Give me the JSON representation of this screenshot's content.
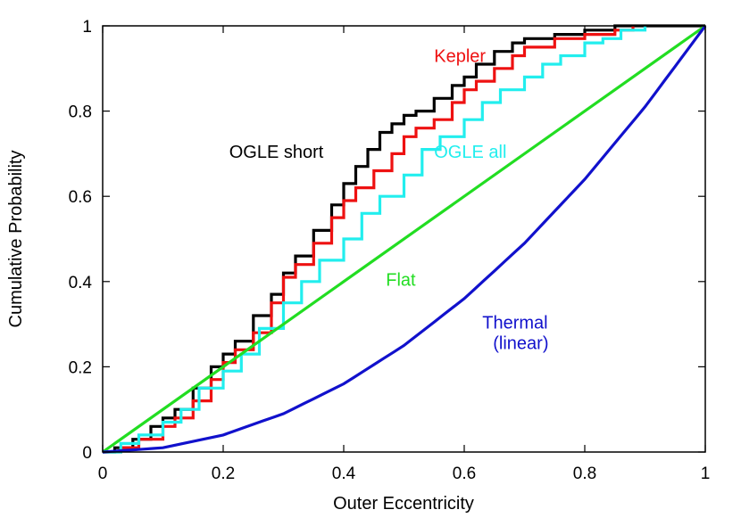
{
  "chart_data": {
    "type": "line",
    "title": "",
    "xlabel": "Outer Eccentricity",
    "ylabel": "Cumulative Probability",
    "xlim": [
      0,
      1
    ],
    "ylim": [
      0,
      1
    ],
    "x_ticks": [
      "0",
      "0.2",
      "0.4",
      "0.6",
      "0.8",
      "1"
    ],
    "y_ticks": [
      "0",
      "0.2",
      "0.4",
      "0.6",
      "0.8",
      "1"
    ],
    "grid": false,
    "series": [
      {
        "name": "OGLE short",
        "color": "#000000",
        "step": true,
        "x": [
          0.0,
          0.02,
          0.05,
          0.08,
          0.1,
          0.12,
          0.15,
          0.18,
          0.2,
          0.22,
          0.25,
          0.28,
          0.3,
          0.32,
          0.35,
          0.38,
          0.4,
          0.42,
          0.44,
          0.46,
          0.48,
          0.5,
          0.52,
          0.55,
          0.58,
          0.6,
          0.62,
          0.65,
          0.68,
          0.7,
          0.75,
          0.8,
          0.85,
          0.9,
          1.0
        ],
        "y": [
          0.0,
          0.01,
          0.03,
          0.06,
          0.08,
          0.1,
          0.15,
          0.2,
          0.23,
          0.26,
          0.32,
          0.37,
          0.42,
          0.46,
          0.52,
          0.58,
          0.63,
          0.67,
          0.71,
          0.75,
          0.77,
          0.79,
          0.8,
          0.83,
          0.86,
          0.88,
          0.91,
          0.94,
          0.96,
          0.97,
          0.98,
          0.99,
          1.0,
          1.0,
          1.0
        ]
      },
      {
        "name": "Kepler",
        "color": "#ee1111",
        "step": true,
        "x": [
          0.0,
          0.03,
          0.06,
          0.1,
          0.12,
          0.15,
          0.18,
          0.2,
          0.22,
          0.25,
          0.28,
          0.3,
          0.32,
          0.35,
          0.38,
          0.4,
          0.42,
          0.45,
          0.48,
          0.5,
          0.52,
          0.55,
          0.58,
          0.6,
          0.62,
          0.65,
          0.68,
          0.7,
          0.75,
          0.8,
          0.85,
          0.88
        ],
        "y": [
          0.0,
          0.01,
          0.03,
          0.06,
          0.08,
          0.12,
          0.17,
          0.21,
          0.24,
          0.28,
          0.35,
          0.41,
          0.44,
          0.49,
          0.55,
          0.59,
          0.62,
          0.66,
          0.7,
          0.74,
          0.76,
          0.78,
          0.82,
          0.85,
          0.87,
          0.9,
          0.93,
          0.95,
          0.97,
          0.98,
          0.99,
          1.0
        ]
      },
      {
        "name": "OGLE all",
        "color": "#22eeee",
        "step": true,
        "x": [
          0.0,
          0.03,
          0.06,
          0.1,
          0.13,
          0.16,
          0.2,
          0.23,
          0.26,
          0.3,
          0.33,
          0.36,
          0.4,
          0.43,
          0.46,
          0.5,
          0.53,
          0.56,
          0.6,
          0.63,
          0.66,
          0.7,
          0.73,
          0.76,
          0.8,
          0.83,
          0.86,
          0.9
        ],
        "y": [
          0.0,
          0.02,
          0.04,
          0.07,
          0.1,
          0.15,
          0.19,
          0.23,
          0.29,
          0.35,
          0.4,
          0.45,
          0.5,
          0.56,
          0.6,
          0.65,
          0.71,
          0.74,
          0.78,
          0.82,
          0.85,
          0.88,
          0.91,
          0.93,
          0.96,
          0.97,
          0.99,
          1.0
        ]
      },
      {
        "name": "Flat",
        "color": "#22dd22",
        "step": false,
        "x": [
          0,
          1
        ],
        "y": [
          0,
          1
        ]
      },
      {
        "name": "Thermal (linear)",
        "color": "#1111cc",
        "step": false,
        "x": [
          0.0,
          0.1,
          0.2,
          0.3,
          0.4,
          0.5,
          0.6,
          0.7,
          0.8,
          0.9,
          1.0
        ],
        "y": [
          0.0,
          0.01,
          0.04,
          0.09,
          0.16,
          0.25,
          0.36,
          0.49,
          0.64,
          0.81,
          1.0
        ]
      }
    ],
    "annotations": [
      {
        "series": "OGLE short",
        "lines": [
          "OGLE short"
        ],
        "x": 0.21,
        "y": 0.69,
        "color": "#000000"
      },
      {
        "series": "Kepler",
        "lines": [
          "Kepler"
        ],
        "x": 0.55,
        "y": 0.915,
        "color": "#ee1111"
      },
      {
        "series": "OGLE all",
        "lines": [
          "OGLE all"
        ],
        "x": 0.55,
        "y": 0.69,
        "color": "#22eeee"
      },
      {
        "series": "Flat",
        "lines": [
          "Flat"
        ],
        "x": 0.47,
        "y": 0.39,
        "color": "#22dd22"
      },
      {
        "series": "Thermal (linear)",
        "lines": [
          "Thermal",
          "(linear)"
        ],
        "x": 0.63,
        "y": 0.29,
        "color": "#1111cc"
      }
    ]
  }
}
